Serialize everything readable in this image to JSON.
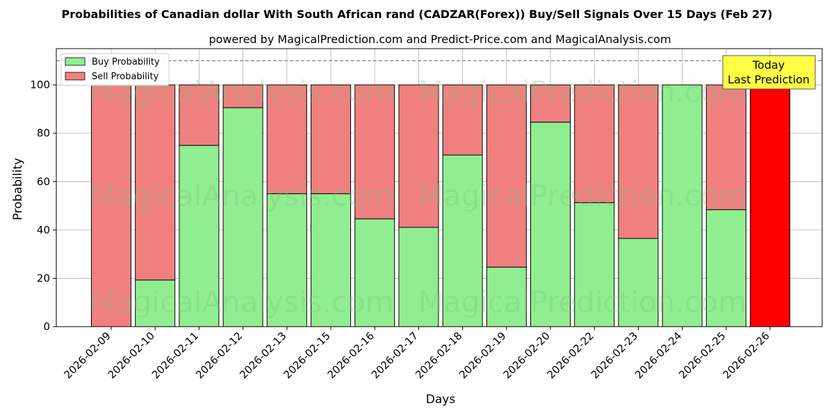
{
  "chart_data": {
    "type": "bar",
    "stacked": true,
    "title": "Probabilities of Canadian dollar With South African rand (CADZAR(Forex)) Buy/Sell Signals Over 15 Days (Feb 27)",
    "subtitle": "powered by MagicalPrediction.com and Predict-Price.com and MagicalAnalysis.com",
    "xlabel": "Days",
    "ylabel": "Probability",
    "ylim": [
      0,
      115
    ],
    "yticks": [
      0,
      20,
      40,
      60,
      80,
      100
    ],
    "reference_line": 110,
    "grid": true,
    "legend_position": "top-left",
    "categories": [
      "2026-02-09",
      "2026-02-10",
      "2026-02-11",
      "2026-02-12",
      "2026-02-13",
      "2026-02-15",
      "2026-02-16",
      "2026-02-17",
      "2026-02-18",
      "2026-02-19",
      "2026-02-20",
      "2026-02-22",
      "2026-02-23",
      "2026-02-24",
      "2026-02-25",
      "2026-02-26"
    ],
    "series": [
      {
        "name": "Buy Probability",
        "color": "#90ee90",
        "values": [
          0,
          19.3,
          75,
          90.6,
          55,
          55,
          44.6,
          41.1,
          71,
          24.6,
          84.6,
          51.3,
          36.5,
          100,
          48.4,
          0
        ]
      },
      {
        "name": "Sell Probability",
        "color": "#f08080",
        "values": [
          100,
          80.7,
          25,
          9.4,
          45,
          45,
          55.4,
          58.9,
          29,
          75.4,
          15.4,
          48.7,
          63.5,
          0,
          51.6,
          0
        ]
      }
    ],
    "highlight": {
      "category": "2026-02-26",
      "value": 100,
      "color": "#ff0000"
    },
    "annotation": {
      "line1": "Today",
      "line2": "Last Prediction",
      "color": "#ffff44"
    },
    "watermarks": [
      "MagicalAnalysis.com",
      "MagicalPrediction.com"
    ]
  }
}
